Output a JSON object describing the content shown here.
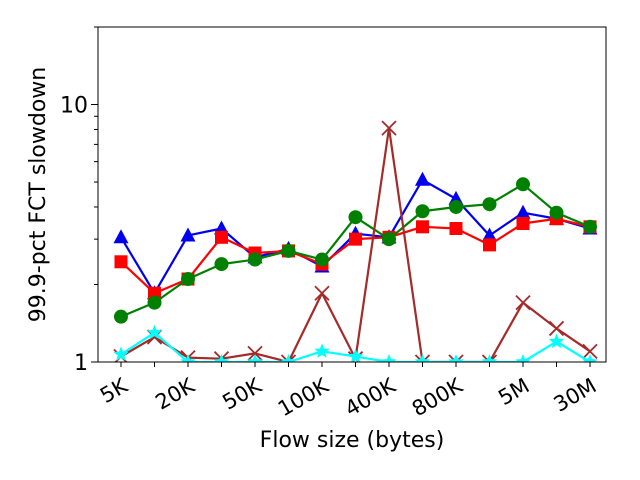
{
  "chart_data": {
    "type": "line",
    "xlabel": "Flow size (bytes)",
    "ylabel": "99.9-pct FCT slowdown",
    "yscale": "log",
    "ylim": [
      1,
      20
    ],
    "x_tick_labels": [
      {
        "index": 0,
        "label": "5K"
      },
      {
        "index": 2,
        "label": "20K"
      },
      {
        "index": 4,
        "label": "50K"
      },
      {
        "index": 6,
        "label": "100K"
      },
      {
        "index": 8,
        "label": "400K"
      },
      {
        "index": 10,
        "label": "800K"
      },
      {
        "index": 12,
        "label": "5M"
      },
      {
        "index": 14,
        "label": "30M"
      }
    ],
    "y_ticks": [
      {
        "value": 1,
        "label": "1"
      },
      {
        "value": 10,
        "label": "10"
      }
    ],
    "x_count": 15,
    "series": [
      {
        "color": "#0000ee",
        "marker": "triangle",
        "values": [
          3.05,
          1.85,
          3.1,
          3.3,
          2.55,
          2.75,
          2.35,
          3.15,
          3.05,
          5.1,
          4.3,
          3.1,
          3.8,
          3.6,
          3.3
        ]
      },
      {
        "color": "#ff0000",
        "marker": "square",
        "values": [
          2.45,
          1.85,
          2.1,
          3.05,
          2.65,
          2.7,
          2.4,
          3.0,
          3.05,
          3.35,
          3.3,
          2.85,
          3.45,
          3.6,
          3.35
        ]
      },
      {
        "color": "#008000",
        "marker": "circle",
        "values": [
          1.5,
          1.7,
          2.1,
          2.4,
          2.5,
          2.7,
          2.5,
          3.65,
          3.0,
          3.85,
          4.0,
          4.1,
          4.9,
          3.8,
          3.35
        ]
      },
      {
        "color": "#a52a2a",
        "marker": "x",
        "values": [
          1.05,
          1.25,
          1.04,
          1.03,
          1.08,
          1.0,
          1.85,
          1.03,
          8.1,
          1.0,
          1.0,
          1.0,
          1.7,
          1.35,
          1.1
        ]
      },
      {
        "color": "#00ffff",
        "marker": "star",
        "values": [
          1.07,
          1.3,
          1.0,
          1.0,
          1.0,
          1.0,
          1.1,
          1.05,
          1.0,
          1.0,
          1.0,
          1.0,
          1.0,
          1.2,
          1.0
        ]
      }
    ]
  }
}
